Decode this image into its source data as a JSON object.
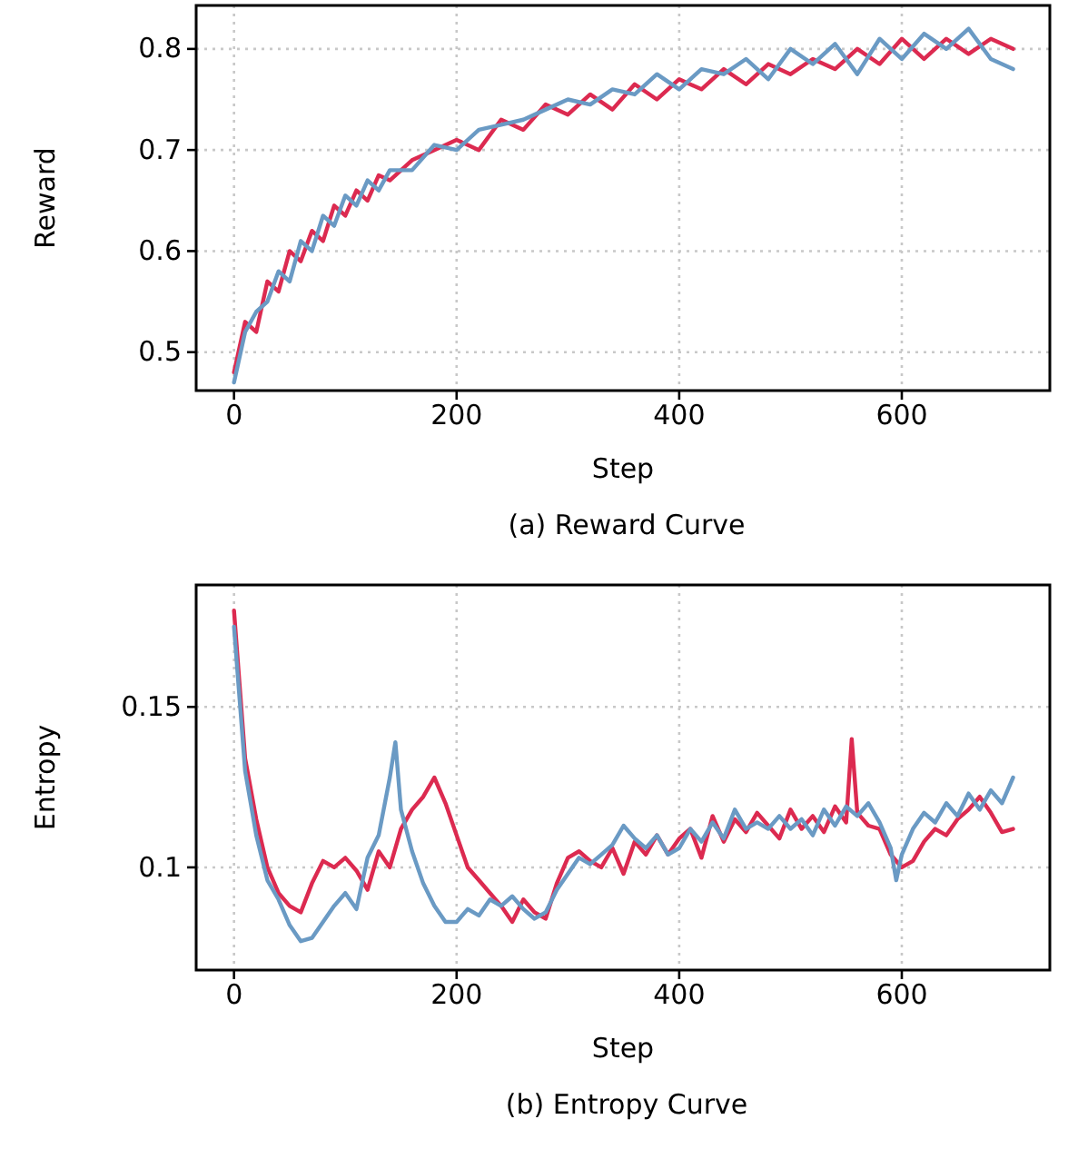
{
  "chart_data": [
    {
      "type": "line",
      "title": "(a) Reward Curve",
      "xlabel": "Step",
      "ylabel": "Reward",
      "xlim": [
        -34,
        733
      ],
      "ylim": [
        0.462,
        0.843
      ],
      "xticks": [
        0,
        200,
        400,
        600
      ],
      "yticks": [
        0.5,
        0.6,
        0.7,
        0.8
      ],
      "grid": true,
      "line_style": "solid",
      "marker": "none",
      "series": [
        {
          "color": "#dc2a50",
          "x": [
            0,
            10,
            20,
            30,
            40,
            50,
            60,
            70,
            80,
            90,
            100,
            110,
            120,
            130,
            140,
            160,
            180,
            200,
            220,
            240,
            260,
            280,
            300,
            320,
            340,
            360,
            380,
            400,
            420,
            440,
            460,
            480,
            500,
            520,
            540,
            560,
            580,
            600,
            620,
            640,
            660,
            680,
            700
          ],
          "values": [
            0.48,
            0.53,
            0.52,
            0.57,
            0.56,
            0.6,
            0.59,
            0.62,
            0.61,
            0.645,
            0.635,
            0.66,
            0.65,
            0.675,
            0.67,
            0.69,
            0.7,
            0.71,
            0.7,
            0.73,
            0.72,
            0.745,
            0.735,
            0.755,
            0.74,
            0.765,
            0.75,
            0.77,
            0.76,
            0.78,
            0.765,
            0.785,
            0.775,
            0.79,
            0.78,
            0.8,
            0.785,
            0.81,
            0.79,
            0.81,
            0.795,
            0.81,
            0.8
          ]
        },
        {
          "color": "#6a9ac4",
          "x": [
            0,
            10,
            20,
            30,
            40,
            50,
            60,
            70,
            80,
            90,
            100,
            110,
            120,
            130,
            140,
            160,
            180,
            200,
            220,
            240,
            260,
            280,
            300,
            320,
            340,
            360,
            380,
            400,
            420,
            440,
            460,
            480,
            500,
            520,
            540,
            560,
            580,
            600,
            620,
            640,
            660,
            680,
            700
          ],
          "values": [
            0.47,
            0.52,
            0.54,
            0.55,
            0.58,
            0.57,
            0.61,
            0.6,
            0.635,
            0.625,
            0.655,
            0.645,
            0.67,
            0.66,
            0.68,
            0.68,
            0.705,
            0.7,
            0.72,
            0.725,
            0.73,
            0.74,
            0.75,
            0.745,
            0.76,
            0.755,
            0.775,
            0.76,
            0.78,
            0.775,
            0.79,
            0.77,
            0.8,
            0.785,
            0.805,
            0.775,
            0.81,
            0.79,
            0.815,
            0.8,
            0.82,
            0.79,
            0.78
          ]
        }
      ]
    },
    {
      "type": "line",
      "title": "(b) Entropy Curve",
      "xlabel": "Step",
      "ylabel": "Entropy",
      "xlim": [
        -34,
        733
      ],
      "ylim": [
        0.068,
        0.188
      ],
      "xticks": [
        0,
        200,
        400,
        600
      ],
      "yticks": [
        0.1,
        0.15
      ],
      "grid": true,
      "line_style": "solid",
      "marker": "none",
      "series": [
        {
          "color": "#dc2a50",
          "x": [
            0,
            10,
            20,
            30,
            40,
            50,
            60,
            70,
            80,
            90,
            100,
            110,
            120,
            130,
            140,
            150,
            160,
            170,
            180,
            190,
            200,
            210,
            220,
            230,
            240,
            250,
            260,
            270,
            280,
            290,
            300,
            310,
            320,
            330,
            340,
            350,
            360,
            370,
            380,
            390,
            400,
            410,
            420,
            430,
            440,
            450,
            460,
            470,
            480,
            490,
            500,
            510,
            520,
            530,
            540,
            550,
            555,
            560,
            570,
            580,
            590,
            600,
            610,
            620,
            630,
            640,
            650,
            660,
            670,
            680,
            690,
            700
          ],
          "values": [
            0.18,
            0.134,
            0.115,
            0.1,
            0.092,
            0.088,
            0.086,
            0.095,
            0.102,
            0.1,
            0.103,
            0.099,
            0.093,
            0.105,
            0.1,
            0.112,
            0.118,
            0.122,
            0.128,
            0.12,
            0.11,
            0.1,
            0.096,
            0.092,
            0.088,
            0.083,
            0.09,
            0.086,
            0.084,
            0.095,
            0.103,
            0.105,
            0.102,
            0.1,
            0.106,
            0.098,
            0.108,
            0.104,
            0.11,
            0.104,
            0.109,
            0.112,
            0.103,
            0.116,
            0.108,
            0.115,
            0.111,
            0.117,
            0.113,
            0.109,
            0.118,
            0.112,
            0.116,
            0.111,
            0.119,
            0.114,
            0.14,
            0.117,
            0.113,
            0.112,
            0.104,
            0.1,
            0.102,
            0.108,
            0.112,
            0.11,
            0.115,
            0.118,
            0.122,
            0.117,
            0.111,
            0.112
          ]
        },
        {
          "color": "#6a9ac4",
          "x": [
            0,
            10,
            20,
            30,
            40,
            50,
            60,
            70,
            80,
            90,
            100,
            110,
            120,
            130,
            140,
            145,
            150,
            160,
            170,
            180,
            190,
            200,
            210,
            220,
            230,
            240,
            250,
            260,
            270,
            280,
            290,
            300,
            310,
            320,
            330,
            340,
            350,
            360,
            370,
            380,
            390,
            400,
            410,
            420,
            430,
            440,
            450,
            460,
            470,
            480,
            490,
            500,
            510,
            520,
            530,
            540,
            550,
            560,
            570,
            580,
            590,
            595,
            600,
            610,
            620,
            630,
            640,
            650,
            660,
            670,
            680,
            690,
            700
          ],
          "values": [
            0.175,
            0.13,
            0.11,
            0.096,
            0.09,
            0.082,
            0.077,
            0.078,
            0.083,
            0.088,
            0.092,
            0.087,
            0.103,
            0.11,
            0.128,
            0.139,
            0.118,
            0.105,
            0.095,
            0.088,
            0.083,
            0.083,
            0.087,
            0.085,
            0.09,
            0.088,
            0.091,
            0.087,
            0.084,
            0.086,
            0.093,
            0.098,
            0.103,
            0.101,
            0.104,
            0.107,
            0.113,
            0.109,
            0.106,
            0.11,
            0.104,
            0.106,
            0.112,
            0.108,
            0.114,
            0.109,
            0.118,
            0.112,
            0.114,
            0.112,
            0.116,
            0.112,
            0.115,
            0.11,
            0.118,
            0.113,
            0.119,
            0.116,
            0.12,
            0.114,
            0.106,
            0.096,
            0.104,
            0.112,
            0.117,
            0.114,
            0.12,
            0.116,
            0.123,
            0.118,
            0.124,
            0.12,
            0.128
          ]
        }
      ]
    }
  ]
}
